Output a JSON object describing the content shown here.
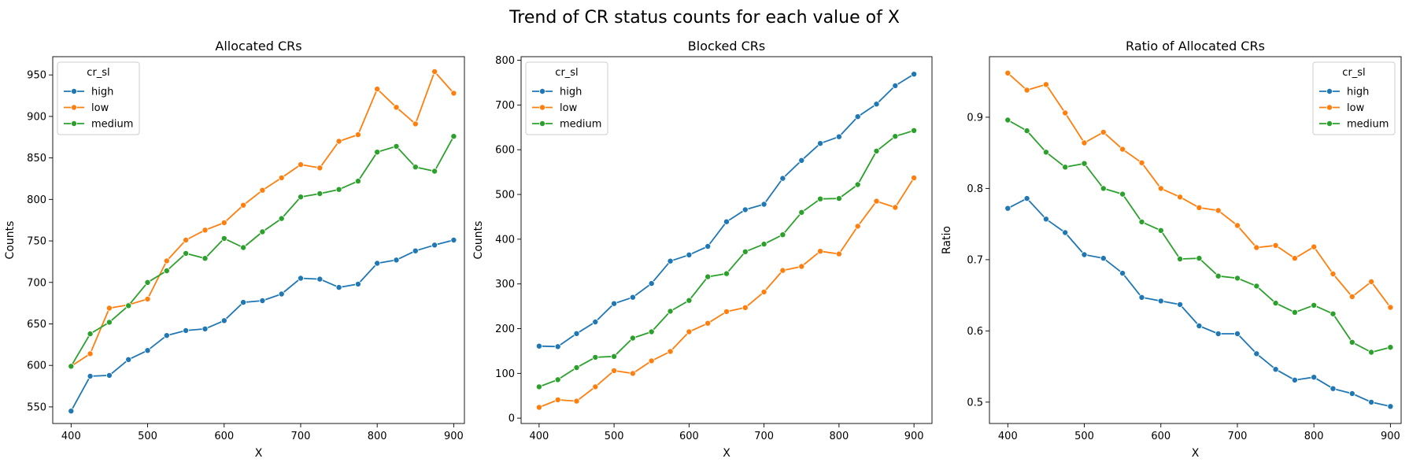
{
  "figure_title": "Trend of CR status counts for each value of X",
  "colors": {
    "high": "#1f77b4",
    "low": "#ff7f0e",
    "medium": "#2ca02c"
  },
  "chart_data": [
    {
      "type": "line",
      "title": "Allocated CRs",
      "xlabel": "X",
      "ylabel": "Counts",
      "xlim": [
        376,
        914
      ],
      "ylim": [
        530,
        972
      ],
      "xticks": [
        400,
        500,
        600,
        700,
        800,
        900
      ],
      "yticks": [
        550,
        600,
        650,
        700,
        750,
        800,
        850,
        900,
        950
      ],
      "grid": false,
      "legend": {
        "title": "cr_sl",
        "placement": "top-left"
      },
      "x": [
        400,
        425,
        450,
        475,
        500,
        525,
        550,
        575,
        600,
        625,
        650,
        675,
        700,
        725,
        750,
        775,
        800,
        825,
        850,
        875,
        900
      ],
      "series": [
        {
          "name": "high",
          "values": [
            545,
            587,
            588,
            607,
            618,
            636,
            642,
            644,
            654,
            676,
            678,
            686,
            705,
            704,
            694,
            698,
            723,
            727,
            738,
            745,
            751
          ]
        },
        {
          "name": "low",
          "values": [
            599,
            614,
            669,
            673,
            680,
            726,
            751,
            763,
            772,
            793,
            811,
            826,
            842,
            838,
            870,
            878,
            933,
            911,
            891,
            954,
            928
          ]
        },
        {
          "name": "medium",
          "values": [
            599,
            638,
            652,
            672,
            700,
            714,
            735,
            729,
            753,
            742,
            761,
            777,
            803,
            807,
            812,
            822,
            857,
            864,
            839,
            834,
            876
          ]
        }
      ]
    },
    {
      "type": "line",
      "title": "Blocked CRs",
      "xlabel": "X",
      "ylabel": "Counts",
      "xlim": [
        376,
        924
      ],
      "ylim": [
        -12,
        808
      ],
      "xticks": [
        400,
        500,
        600,
        700,
        800,
        900
      ],
      "yticks": [
        0,
        100,
        200,
        300,
        400,
        500,
        600,
        700,
        800
      ],
      "grid": false,
      "legend": {
        "title": "cr_sl",
        "placement": "top-left"
      },
      "x": [
        400,
        425,
        450,
        475,
        500,
        525,
        550,
        575,
        600,
        625,
        650,
        675,
        700,
        725,
        750,
        775,
        800,
        825,
        850,
        875,
        900
      ],
      "series": [
        {
          "name": "high",
          "values": [
            161,
            160,
            189,
            215,
            256,
            270,
            301,
            351,
            365,
            384,
            439,
            466,
            478,
            536,
            576,
            614,
            629,
            674,
            702,
            743,
            769
          ]
        },
        {
          "name": "low",
          "values": [
            24,
            41,
            38,
            70,
            106,
            100,
            128,
            149,
            193,
            212,
            238,
            247,
            282,
            330,
            339,
            373,
            367,
            429,
            485,
            471,
            537
          ]
        },
        {
          "name": "medium",
          "values": [
            70,
            86,
            113,
            136,
            138,
            179,
            193,
            239,
            263,
            316,
            323,
            372,
            389,
            410,
            460,
            490,
            491,
            522,
            597,
            630,
            643
          ]
        }
      ]
    },
    {
      "type": "line",
      "title": "Ratio of Allocated CRs",
      "xlabel": "X",
      "ylabel": "Ratio",
      "xlim": [
        376,
        914
      ],
      "ylim": [
        0.47,
        0.985
      ],
      "xticks": [
        400,
        500,
        600,
        700,
        800,
        900
      ],
      "yticks": [
        0.5,
        0.6,
        0.7,
        0.8,
        0.9
      ],
      "grid": false,
      "legend": {
        "title": "cr_sl",
        "placement": "top-right"
      },
      "x": [
        400,
        425,
        450,
        475,
        500,
        525,
        550,
        575,
        600,
        625,
        650,
        675,
        700,
        725,
        750,
        775,
        800,
        825,
        850,
        875,
        900
      ],
      "series": [
        {
          "name": "high",
          "values": [
            0.772,
            0.786,
            0.757,
            0.738,
            0.707,
            0.702,
            0.681,
            0.647,
            0.642,
            0.637,
            0.607,
            0.596,
            0.596,
            0.568,
            0.546,
            0.531,
            0.535,
            0.519,
            0.512,
            0.5,
            0.494
          ]
        },
        {
          "name": "low",
          "values": [
            0.962,
            0.938,
            0.946,
            0.906,
            0.864,
            0.879,
            0.855,
            0.836,
            0.8,
            0.788,
            0.773,
            0.769,
            0.748,
            0.717,
            0.72,
            0.702,
            0.718,
            0.68,
            0.648,
            0.669,
            0.633
          ]
        },
        {
          "name": "medium",
          "values": [
            0.896,
            0.881,
            0.851,
            0.83,
            0.835,
            0.8,
            0.792,
            0.753,
            0.741,
            0.701,
            0.702,
            0.677,
            0.674,
            0.663,
            0.639,
            0.626,
            0.636,
            0.624,
            0.584,
            0.57,
            0.577
          ]
        }
      ]
    }
  ]
}
